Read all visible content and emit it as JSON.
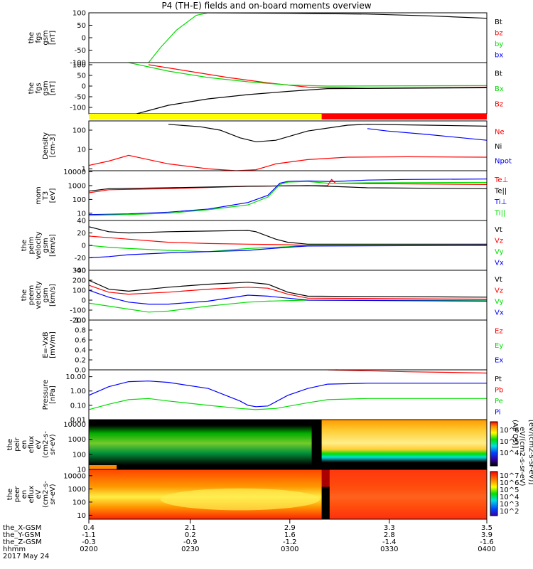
{
  "title": "P4 (TH-E) fields and on-board moments overview",
  "colors": {
    "black": "#000000",
    "red": "#ff0000",
    "green": "#00dd00",
    "blue": "#0000ff",
    "yellow": "#ffff00",
    "flag_red": "#ff0000"
  },
  "chart_data": [
    {
      "id": "fgs",
      "type": "line",
      "ylabel": [
        "the",
        "fgs",
        "gsm",
        "[nT]"
      ],
      "ylim": [
        -100,
        100
      ],
      "yticks": [
        "100",
        "50",
        "0",
        "-50",
        "-100"
      ],
      "legend": [
        {
          "name": "Bt",
          "color": "black"
        },
        {
          "name": "bz",
          "color": "red"
        },
        {
          "name": "by",
          "color": "green"
        },
        {
          "name": "bx",
          "color": "blue"
        }
      ],
      "series": [
        {
          "name": "by",
          "color": "green",
          "x": [
            0.15,
            0.18,
            0.22,
            0.27,
            0.3
          ],
          "y": [
            -100,
            -40,
            30,
            90,
            100
          ]
        },
        {
          "name": "Bt",
          "color": "black",
          "x": [
            0.3,
            0.5,
            0.7,
            0.85,
            1.0
          ],
          "y": [
            100,
            98,
            95,
            88,
            78
          ]
        }
      ]
    },
    {
      "id": "fgs2",
      "type": "line",
      "ylabel": [
        "the",
        "fgs",
        "gsm",
        "[nT]"
      ],
      "ylim": [
        -130,
        110
      ],
      "yticks": [
        "100",
        "50",
        "0",
        "-50",
        "-100"
      ],
      "legend": [
        {
          "name": "Bt",
          "color": "black"
        },
        {
          "name": "Bx",
          "color": "green"
        },
        {
          "name": "Bz",
          "color": "red"
        }
      ],
      "series": [
        {
          "name": "Bz",
          "color": "red",
          "x": [
            0.15,
            0.25,
            0.35,
            0.45,
            0.55,
            0.7,
            1.0
          ],
          "y": [
            100,
            70,
            40,
            15,
            -5,
            -10,
            -5
          ]
        },
        {
          "name": "Bx",
          "color": "green",
          "x": [
            0.1,
            0.2,
            0.3,
            0.4,
            0.5,
            0.6,
            1.0
          ],
          "y": [
            110,
            70,
            40,
            20,
            5,
            0,
            2
          ]
        },
        {
          "name": "Bt",
          "color": "black",
          "x": [
            0.12,
            0.2,
            0.3,
            0.4,
            0.5,
            0.6,
            1.0
          ],
          "y": [
            -130,
            -90,
            -60,
            -40,
            -25,
            -12,
            -8
          ]
        }
      ]
    },
    {
      "id": "flag",
      "type": "bar",
      "segments": [
        {
          "x": [
            0,
            0.585
          ],
          "color": "yellow"
        },
        {
          "x": [
            0.585,
            1.0
          ],
          "color": "flag_red"
        }
      ]
    },
    {
      "id": "density",
      "type": "line",
      "ylabel": [
        "Density",
        "[cm-3]"
      ],
      "log": true,
      "ylim": [
        0.8,
        300
      ],
      "yticks": [
        "100",
        "10",
        "1"
      ],
      "legend": [
        {
          "name": "Ne",
          "color": "red"
        },
        {
          "name": "Ni",
          "color": "black"
        },
        {
          "name": "Npot",
          "color": "blue"
        }
      ],
      "series": [
        {
          "name": "Ni",
          "color": "black",
          "x": [
            0.2,
            0.28,
            0.33,
            0.38,
            0.42,
            0.47,
            0.55,
            0.65,
            0.7,
            0.85,
            1.0
          ],
          "y": [
            200,
            150,
            100,
            40,
            25,
            30,
            90,
            180,
            200,
            180,
            160
          ]
        },
        {
          "name": "Ne",
          "color": "red",
          "x": [
            0,
            0.05,
            0.1,
            0.15,
            0.2,
            0.3,
            0.37,
            0.42,
            0.47,
            0.55,
            0.65,
            0.8,
            1.0
          ],
          "y": [
            1.5,
            2.5,
            5,
            3,
            1.8,
            1,
            0.8,
            0.9,
            1.8,
            3,
            4,
            4.2,
            4
          ]
        },
        {
          "name": "Npot",
          "color": "blue",
          "x": [
            0.7,
            0.75,
            0.85,
            1.0
          ],
          "y": [
            120,
            90,
            60,
            30
          ]
        }
      ]
    },
    {
      "id": "mom_temp",
      "type": "line",
      "ylabel": [
        "mom",
        "T3",
        "[eV]"
      ],
      "log": true,
      "ylim": [
        3,
        12000
      ],
      "yticks": [
        "10000",
        "1000",
        "100",
        "10"
      ],
      "legend": [
        {
          "name": "Te⊥",
          "color": "red"
        },
        {
          "name": "Te||",
          "color": "black"
        },
        {
          "name": "Ti⊥",
          "color": "blue"
        },
        {
          "name": "Ti||",
          "color": "green"
        }
      ],
      "series": [
        {
          "name": "Te⊥",
          "color": "red",
          "x": [
            0,
            0.05,
            0.2,
            0.4,
            0.55,
            0.6,
            0.61,
            0.62,
            0.7,
            1.0
          ],
          "y": [
            300,
            500,
            600,
            900,
            1000,
            1000,
            2800,
            1500,
            1400,
            1200
          ]
        },
        {
          "name": "Te||",
          "color": "black",
          "x": [
            0,
            0.05,
            0.2,
            0.4,
            0.55,
            0.6,
            0.65,
            0.7,
            1.0
          ],
          "y": [
            400,
            600,
            700,
            900,
            1000,
            900,
            800,
            700,
            600
          ]
        },
        {
          "name": "Ti⊥",
          "color": "blue",
          "x": [
            0,
            0.1,
            0.2,
            0.3,
            0.4,
            0.45,
            0.48,
            0.5,
            0.55,
            0.6,
            0.62,
            0.7,
            0.8,
            1.0
          ],
          "y": [
            8,
            9,
            12,
            20,
            60,
            200,
            1500,
            2000,
            2200,
            2000,
            2000,
            2500,
            2800,
            3000
          ]
        },
        {
          "name": "Ti||",
          "color": "green",
          "x": [
            0,
            0.1,
            0.2,
            0.3,
            0.4,
            0.45,
            0.48,
            0.5,
            0.55,
            0.6,
            0.62,
            0.7,
            1.0
          ],
          "y": [
            7,
            8,
            10,
            18,
            40,
            150,
            1200,
            1800,
            2000,
            1500,
            1500,
            1600,
            1700
          ]
        }
      ]
    },
    {
      "id": "peim_v",
      "type": "line",
      "ylabel": [
        "the",
        "peim",
        "velocity",
        "gsm",
        "[km/s]"
      ],
      "ylim": [
        -40,
        40
      ],
      "yticks": [
        "40",
        "20",
        "0",
        "-20",
        "-40"
      ],
      "legend": [
        {
          "name": "Vt",
          "color": "black"
        },
        {
          "name": "Vz",
          "color": "red"
        },
        {
          "name": "Vy",
          "color": "green"
        },
        {
          "name": "Vx",
          "color": "blue"
        }
      ],
      "series": [
        {
          "name": "Vt",
          "color": "black",
          "x": [
            0,
            0.05,
            0.1,
            0.2,
            0.3,
            0.4,
            0.42,
            0.47,
            0.5,
            0.55,
            1.0
          ],
          "y": [
            30,
            22,
            20,
            22,
            23,
            24,
            22,
            10,
            5,
            2,
            2
          ]
        },
        {
          "name": "Vz",
          "color": "red",
          "x": [
            0,
            0.1,
            0.2,
            0.3,
            0.4,
            0.5,
            0.55,
            1.0
          ],
          "y": [
            15,
            10,
            5,
            3,
            2,
            1,
            0,
            0
          ]
        },
        {
          "name": "Vy",
          "color": "green",
          "x": [
            0,
            0.05,
            0.1,
            0.2,
            0.3,
            0.4,
            0.5,
            0.55,
            1.0
          ],
          "y": [
            0,
            -3,
            -5,
            -8,
            -10,
            -5,
            -2,
            0,
            0
          ]
        },
        {
          "name": "Vx",
          "color": "blue",
          "x": [
            0,
            0.05,
            0.1,
            0.2,
            0.3,
            0.4,
            0.5,
            0.55,
            1.0
          ],
          "y": [
            -20,
            -18,
            -15,
            -12,
            -10,
            -8,
            -3,
            -1,
            0
          ]
        }
      ]
    },
    {
      "id": "peem_v",
      "type": "line",
      "ylabel": [
        "the",
        "peem",
        "velocity",
        "gsm",
        "[km/s]"
      ],
      "ylim": [
        -200,
        300
      ],
      "yticks": [
        "300",
        "200",
        "100",
        "0",
        "-100",
        "-200"
      ],
      "legend": [
        {
          "name": "Vt",
          "color": "black"
        },
        {
          "name": "Vz",
          "color": "red"
        },
        {
          "name": "Vy",
          "color": "green"
        },
        {
          "name": "Vx",
          "color": "blue"
        }
      ],
      "series": [
        {
          "name": "Vt",
          "color": "black",
          "x": [
            0,
            0.05,
            0.1,
            0.2,
            0.3,
            0.4,
            0.45,
            0.5,
            0.55,
            1.0
          ],
          "y": [
            200,
            110,
            90,
            130,
            160,
            180,
            160,
            80,
            40,
            30
          ]
        },
        {
          "name": "Vz",
          "color": "red",
          "x": [
            0,
            0.05,
            0.1,
            0.2,
            0.3,
            0.4,
            0.45,
            0.5,
            0.55,
            1.0
          ],
          "y": [
            150,
            80,
            60,
            80,
            110,
            130,
            120,
            60,
            20,
            10
          ]
        },
        {
          "name": "Vy",
          "color": "green",
          "x": [
            0,
            0.05,
            0.1,
            0.15,
            0.2,
            0.3,
            0.4,
            0.45,
            0.5,
            0.55,
            1.0
          ],
          "y": [
            -30,
            -60,
            -90,
            -120,
            -110,
            -60,
            -20,
            -10,
            -5,
            0,
            0
          ]
        },
        {
          "name": "Vx",
          "color": "blue",
          "x": [
            0,
            0.05,
            0.1,
            0.15,
            0.2,
            0.3,
            0.4,
            0.45,
            0.5,
            0.55,
            1.0
          ],
          "y": [
            100,
            30,
            -20,
            -40,
            -40,
            -10,
            50,
            40,
            20,
            0,
            -10
          ]
        }
      ]
    },
    {
      "id": "efield",
      "type": "line",
      "ylabel": [
        "E=-VxB",
        "[mV/m]"
      ],
      "ylim": [
        0,
        1.0
      ],
      "yticks": [
        "1.0",
        "0.8",
        "0.6",
        "0.4",
        "0.2",
        "0.0"
      ],
      "legend": [
        {
          "name": "Ez",
          "color": "red"
        },
        {
          "name": "Ey",
          "color": "green"
        },
        {
          "name": "Ex",
          "color": "blue"
        }
      ],
      "series": [
        {
          "name": "Ez",
          "color": "red",
          "x": [
            0.62,
            0.7,
            0.8,
            0.9,
            1.0
          ],
          "y": [
            0.0,
            -0.02,
            -0.05,
            -0.08,
            -0.12
          ]
        }
      ]
    },
    {
      "id": "pressure",
      "type": "line",
      "ylabel": [
        "Pressure",
        "[nPa]"
      ],
      "log": true,
      "ylim": [
        0.01,
        30
      ],
      "yticks": [
        "10.00",
        "1.00",
        "0.10",
        "0.01"
      ],
      "legend": [
        {
          "name": "Pt",
          "color": "black"
        },
        {
          "name": "Pb",
          "color": "red"
        },
        {
          "name": "Pe",
          "color": "green"
        },
        {
          "name": "Pi",
          "color": "blue"
        }
      ],
      "series": [
        {
          "name": "Pb",
          "color": "red",
          "x": [
            0.6,
            0.7,
            0.8,
            0.9,
            1.0
          ],
          "y": [
            30,
            26,
            22,
            20,
            18
          ]
        },
        {
          "name": "Pi",
          "color": "blue",
          "x": [
            0,
            0.05,
            0.1,
            0.15,
            0.2,
            0.3,
            0.38,
            0.4,
            0.42,
            0.45,
            0.5,
            0.55,
            0.6,
            0.7,
            1.0
          ],
          "y": [
            0.5,
            2,
            4.5,
            5,
            4,
            1.5,
            0.2,
            0.1,
            0.08,
            0.09,
            0.5,
            1.5,
            3,
            3.5,
            3.5
          ]
        },
        {
          "name": "Pe",
          "color": "green",
          "x": [
            0,
            0.05,
            0.1,
            0.15,
            0.2,
            0.3,
            0.38,
            0.42,
            0.47,
            0.55,
            0.6,
            0.7,
            1.0
          ],
          "y": [
            0.05,
            0.12,
            0.25,
            0.3,
            0.2,
            0.1,
            0.06,
            0.05,
            0.06,
            0.15,
            0.25,
            0.3,
            0.3
          ]
        }
      ]
    },
    {
      "id": "peir_spec",
      "type": "heatmap",
      "ylabel": [
        "the",
        "peir",
        "en",
        "eflux",
        "eV",
        "(cm2-s-",
        "sr-eV)"
      ],
      "ylog": true,
      "ylim": [
        10,
        20000
      ],
      "yticks": [
        "10000",
        "1000",
        "100",
        "10"
      ]
    },
    {
      "id": "peer_spec",
      "type": "heatmap",
      "ylabel": [
        "the",
        "peer",
        "en",
        "eflux",
        "eV",
        "(cm2-s-",
        "sr-eV)"
      ],
      "ylog": true,
      "ylim": [
        5,
        30000
      ],
      "yticks": [
        "10000",
        "1000",
        "100",
        "10"
      ]
    }
  ],
  "colorbar": {
    "upper_label": "(All Qs)]",
    "upper_ticks": [
      "10^6",
      "10^5",
      "10^4"
    ],
    "lower_ticks": [
      "10^7",
      "10^6",
      "10^5",
      "10^4",
      "10^3",
      "10^2"
    ],
    "side_label": "[eV/(cm2-s-sr-eV)]",
    "mid_label": "eV/(cm2-s-sr-eV)"
  },
  "xaxis": {
    "rows": [
      {
        "label": "the_X-GSM",
        "values": [
          "0.4",
          "2.1",
          "2.9",
          "3.3",
          "3.5"
        ]
      },
      {
        "label": "the_Y-GSM",
        "values": [
          "-1.1",
          "0.2",
          "1.6",
          "2.8",
          "3.9"
        ]
      },
      {
        "label": "the_Z-GSM",
        "values": [
          "-0.3",
          "-0.9",
          "-1.2",
          "-1.4",
          "-1.6"
        ]
      },
      {
        "label": "hhmm",
        "values": [
          "0200",
          "0230",
          "0300",
          "0330",
          "0400"
        ]
      }
    ],
    "date": "2017 May 24"
  }
}
